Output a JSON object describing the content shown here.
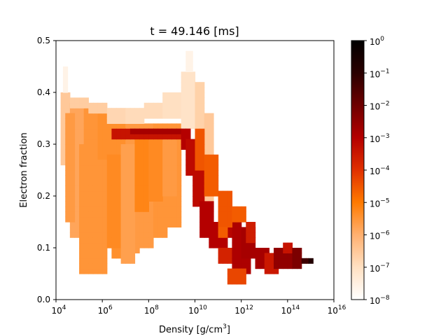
{
  "chart_data": {
    "type": "heatmap",
    "title": "t = 49.146 [ms]",
    "xlabel_base": "Density [g/cm",
    "xlabel_sup": "3",
    "xlabel_end": "]",
    "ylabel": "Electron fraction",
    "x_scale": "log",
    "xlim_exponent": [
      4,
      16
    ],
    "ylim": [
      0.0,
      0.5
    ],
    "x_ticks": [
      {
        "base": "10",
        "exp": "4",
        "value_exponent": 4
      },
      {
        "base": "10",
        "exp": "6",
        "value_exponent": 6
      },
      {
        "base": "10",
        "exp": "8",
        "value_exponent": 8
      },
      {
        "base": "10",
        "exp": "10",
        "value_exponent": 10
      },
      {
        "base": "10",
        "exp": "12",
        "value_exponent": 12
      },
      {
        "base": "10",
        "exp": "14",
        "value_exponent": 14
      },
      {
        "base": "10",
        "exp": "16",
        "value_exponent": 16
      }
    ],
    "y_ticks": [
      {
        "label": "0.0",
        "value": 0.0
      },
      {
        "label": "0.1",
        "value": 0.1
      },
      {
        "label": "0.2",
        "value": 0.2
      },
      {
        "label": "0.3",
        "value": 0.3
      },
      {
        "label": "0.4",
        "value": 0.4
      },
      {
        "label": "0.5",
        "value": 0.5
      }
    ],
    "grid": false,
    "colormap": "gist_heat_r",
    "colors": [
      "#ffffff",
      "#ffe0c2",
      "#ffb070",
      "#ff7a00",
      "#e03000",
      "#b40000",
      "#6e0000",
      "#2a0000",
      "#000000"
    ],
    "colorbar": {
      "scale": "log",
      "range_exponent": [
        -8,
        0
      ],
      "ticks": [
        {
          "base": "10",
          "exp": "0",
          "value_exponent": 0
        },
        {
          "base": "10",
          "exp": "−1",
          "value_exponent": -1
        },
        {
          "base": "10",
          "exp": "−2",
          "value_exponent": -2
        },
        {
          "base": "10",
          "exp": "−3",
          "value_exponent": -3
        },
        {
          "base": "10",
          "exp": "−4",
          "value_exponent": -4
        },
        {
          "base": "10",
          "exp": "−5",
          "value_exponent": -5
        },
        {
          "base": "10",
          "exp": "−6",
          "value_exponent": -6
        },
        {
          "base": "10",
          "exp": "−7",
          "value_exponent": -7
        },
        {
          "base": "10",
          "exp": "−8",
          "value_exponent": -8
        }
      ]
    },
    "bin_size": {
      "log10_density": 0.2,
      "ye": 0.01
    },
    "cells": [
      [
        [
          4.2,
          4.6
        ],
        [
          0.26,
          0.4
        ],
        -6.5
      ],
      [
        [
          4.6,
          5.2
        ],
        [
          0.12,
          0.38
        ],
        -5.8
      ],
      [
        [
          5.2,
          5.8
        ],
        [
          0.07,
          0.37
        ],
        -5.5
      ],
      [
        [
          5.8,
          6.4
        ],
        [
          0.1,
          0.36
        ],
        -5.4
      ],
      [
        [
          6.4,
          7.0
        ],
        [
          0.08,
          0.35
        ],
        -5.4
      ],
      [
        [
          7.0,
          7.6
        ],
        [
          0.09,
          0.34
        ],
        -5.6
      ],
      [
        [
          7.6,
          8.2
        ],
        [
          0.1,
          0.34
        ],
        -5.6
      ],
      [
        [
          8.2,
          8.8
        ],
        [
          0.12,
          0.34
        ],
        -5.5
      ],
      [
        [
          8.8,
          9.4
        ],
        [
          0.14,
          0.34
        ],
        -5.5
      ],
      [
        [
          4.4,
          4.8
        ],
        [
          0.15,
          0.36
        ],
        -5.6
      ],
      [
        [
          5.0,
          5.6
        ],
        [
          0.05,
          0.3
        ],
        -5.5
      ],
      [
        [
          5.6,
          6.2
        ],
        [
          0.05,
          0.27
        ],
        -5.5
      ],
      [
        [
          6.2,
          6.8
        ],
        [
          0.1,
          0.28
        ],
        -5.3
      ],
      [
        [
          6.8,
          7.4
        ],
        [
          0.07,
          0.3
        ],
        -5.7
      ],
      [
        [
          7.4,
          8.0
        ],
        [
          0.17,
          0.32
        ],
        -5.2
      ],
      [
        [
          8.0,
          8.6
        ],
        [
          0.19,
          0.33
        ],
        -5.3
      ],
      [
        [
          8.6,
          9.2
        ],
        [
          0.2,
          0.33
        ],
        -5.6
      ],
      [
        [
          4.6,
          5.4
        ],
        [
          0.37,
          0.39
        ],
        -6.6
      ],
      [
        [
          5.4,
          6.2
        ],
        [
          0.36,
          0.38
        ],
        -6.6
      ],
      [
        [
          6.2,
          7.0
        ],
        [
          0.34,
          0.37
        ],
        -6.8
      ],
      [
        [
          7.0,
          7.8
        ],
        [
          0.34,
          0.37
        ],
        -6.9
      ],
      [
        [
          7.8,
          8.6
        ],
        [
          0.35,
          0.38
        ],
        -6.9
      ],
      [
        [
          8.6,
          9.4
        ],
        [
          0.35,
          0.4
        ],
        -7.0
      ],
      [
        [
          9.4,
          10.0
        ],
        [
          0.33,
          0.44
        ],
        -7.1
      ],
      [
        [
          9.6,
          9.9
        ],
        [
          0.44,
          0.48
        ],
        -7.6
      ],
      [
        [
          4.3,
          4.5
        ],
        [
          0.4,
          0.45
        ],
        -7.6
      ],
      [
        [
          10.0,
          10.4
        ],
        [
          0.19,
          0.42
        ],
        -6.7
      ],
      [
        [
          10.4,
          10.8
        ],
        [
          0.17,
          0.36
        ],
        -6.5
      ],
      [
        [
          6.4,
          9.8
        ],
        [
          0.31,
          0.33
        ],
        -3.4
      ],
      [
        [
          7.2,
          9.4
        ],
        [
          0.32,
          0.33
        ],
        -2.8
      ],
      [
        [
          9.4,
          9.8
        ],
        [
          0.29,
          0.33
        ],
        -3.0
      ],
      [
        [
          9.6,
          10.0
        ],
        [
          0.24,
          0.31
        ],
        -3.2
      ],
      [
        [
          9.9,
          10.4
        ],
        [
          0.18,
          0.25
        ],
        -3.2
      ],
      [
        [
          10.2,
          10.8
        ],
        [
          0.12,
          0.19
        ],
        -3.0
      ],
      [
        [
          10.6,
          11.4
        ],
        [
          0.1,
          0.15
        ],
        -3.0
      ],
      [
        [
          11.2,
          11.8
        ],
        [
          0.12,
          0.16
        ],
        -3.1
      ],
      [
        [
          11.6,
          12.0
        ],
        [
          0.09,
          0.16
        ],
        -2.9
      ],
      [
        [
          10.0,
          10.4
        ],
        [
          0.25,
          0.33
        ],
        -4.5
      ],
      [
        [
          10.4,
          11.0
        ],
        [
          0.2,
          0.28
        ],
        -4.6
      ],
      [
        [
          11.0,
          11.6
        ],
        [
          0.14,
          0.21
        ],
        -4.5
      ],
      [
        [
          11.0,
          11.6
        ],
        [
          0.07,
          0.1
        ],
        -3.7
      ],
      [
        [
          11.6,
          12.4
        ],
        [
          0.05,
          0.1
        ],
        -2.9
      ],
      [
        [
          11.4,
          12.2
        ],
        [
          0.03,
          0.06
        ],
        -4.3
      ],
      [
        [
          11.6,
          12.2
        ],
        [
          0.15,
          0.18
        ],
        -4.6
      ],
      [
        [
          12.0,
          12.6
        ],
        [
          0.08,
          0.14
        ],
        -2.8
      ],
      [
        [
          12.2,
          12.6
        ],
        [
          0.11,
          0.15
        ],
        -3.6
      ],
      [
        [
          12.6,
          13.2
        ],
        [
          0.06,
          0.1
        ],
        -2.8
      ],
      [
        [
          13.0,
          13.6
        ],
        [
          0.05,
          0.09
        ],
        -3.5
      ],
      [
        [
          13.4,
          14.2
        ],
        [
          0.06,
          0.1
        ],
        -2.5
      ],
      [
        [
          13.8,
          14.2
        ],
        [
          0.09,
          0.11
        ],
        -3.4
      ],
      [
        [
          14.2,
          14.6
        ],
        [
          0.06,
          0.1
        ],
        -2.2
      ],
      [
        [
          14.6,
          14.9
        ],
        [
          0.07,
          0.08
        ],
        -1.3
      ],
      [
        [
          14.9,
          15.1
        ],
        [
          0.07,
          0.08
        ],
        -0.8
      ],
      [
        [
          11.0,
          11.4
        ],
        [
          0.12,
          0.14
        ],
        -4.6
      ]
    ]
  }
}
